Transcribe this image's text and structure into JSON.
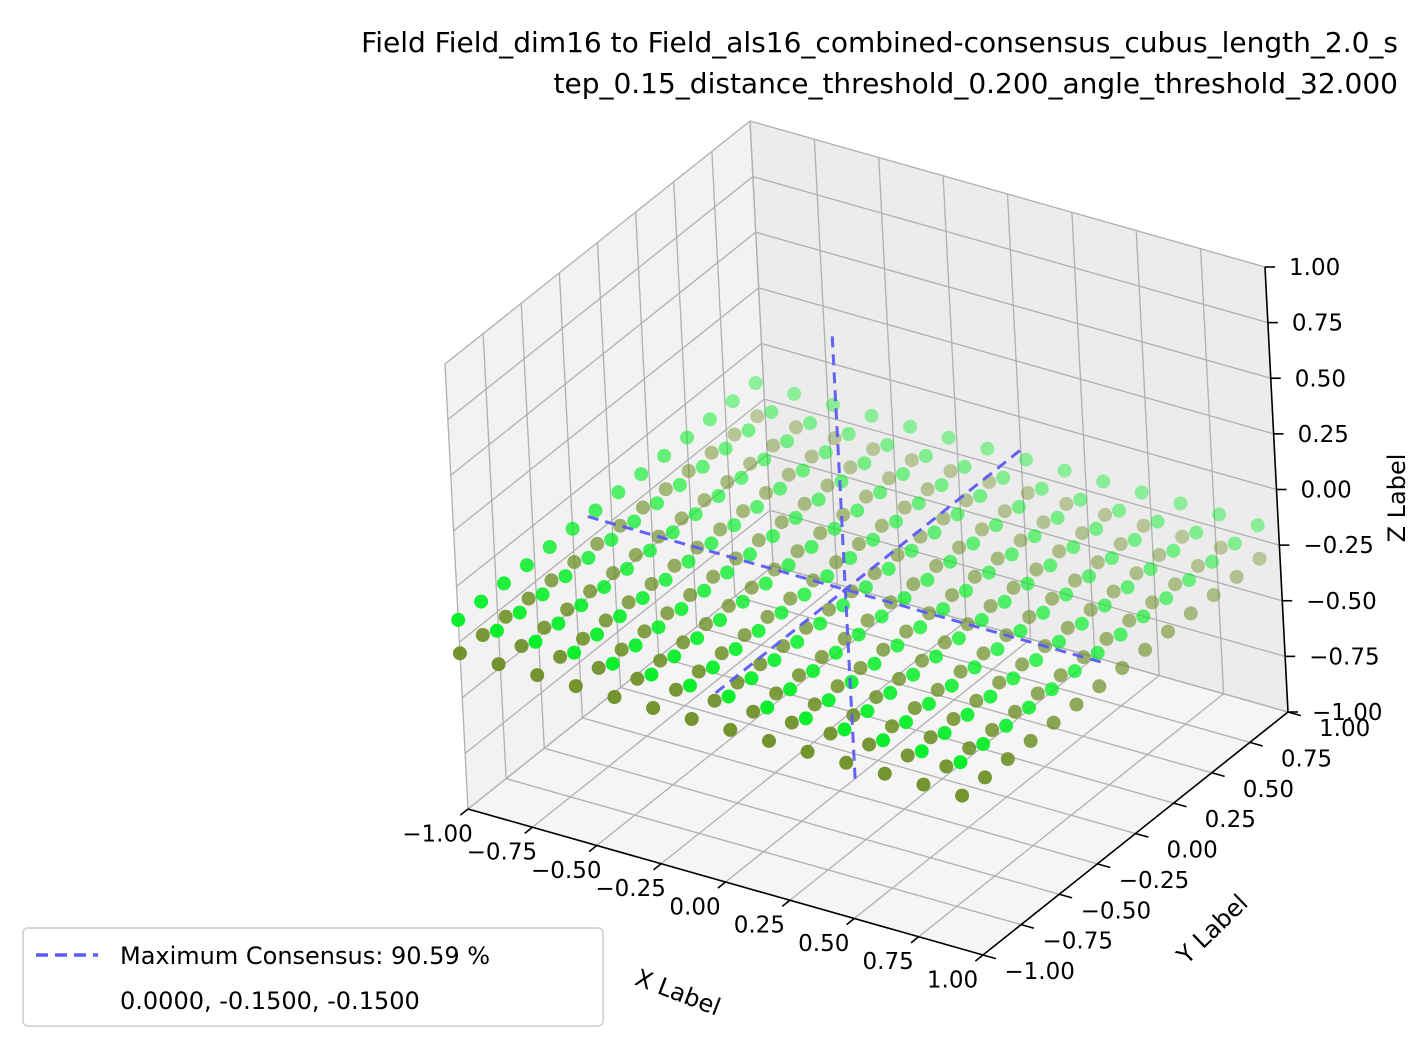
{
  "chart_data": {
    "type": "scatter",
    "projection": "3d",
    "title_lines": [
      "Field Field_dim16 to Field_als16_combined-consensus_cubus_length_2.0_s",
      "tep_0.15_distance_threshold_0.200_angle_threshold_32.000"
    ],
    "xlabel": "X Label",
    "ylabel": "Y Label",
    "zlabel": "Z Label",
    "xlim": [
      -1.0,
      1.0
    ],
    "ylim": [
      -1.0,
      1.0
    ],
    "zlim": [
      -1.0,
      1.0
    ],
    "x_ticks": [
      "−1.00",
      "−0.75",
      "−0.50",
      "−0.25",
      "0.00",
      "0.25",
      "0.50",
      "0.75",
      "1.00"
    ],
    "y_ticks": [
      "−1.00",
      "−0.75",
      "−0.50",
      "−0.25",
      "0.00",
      "0.25",
      "0.50",
      "0.75",
      "1.00"
    ],
    "z_ticks": [
      "−1.00",
      "−0.75",
      "−0.50",
      "−0.25",
      "0.00",
      "0.25",
      "0.50",
      "0.75",
      "1.00"
    ],
    "tick_values": [
      -1.0,
      -0.75,
      -0.5,
      -0.25,
      0.0,
      0.25,
      0.5,
      0.75,
      1.0
    ],
    "grid": true,
    "series": [
      {
        "color": "#00ee22",
        "grid_start": -1.0,
        "grid_step": 0.15,
        "grid_count": 14,
        "z_value": -0.15
      },
      {
        "color": "#6b8e23",
        "grid_start": -1.0,
        "grid_step": 0.15,
        "grid_count": 14,
        "z_value": -0.3
      },
      {
        "name": "Maximum Consensus: 90.59 %",
        "type": "line",
        "style": "dashed",
        "color": "#5b5bf5",
        "center": [
          0.0,
          -0.15,
          -0.15
        ]
      }
    ],
    "legend": {
      "placement": "bottom-left",
      "entries": [
        "Maximum Consensus: 90.59 %",
        "0.0000, -0.1500, -0.1500"
      ]
    }
  }
}
